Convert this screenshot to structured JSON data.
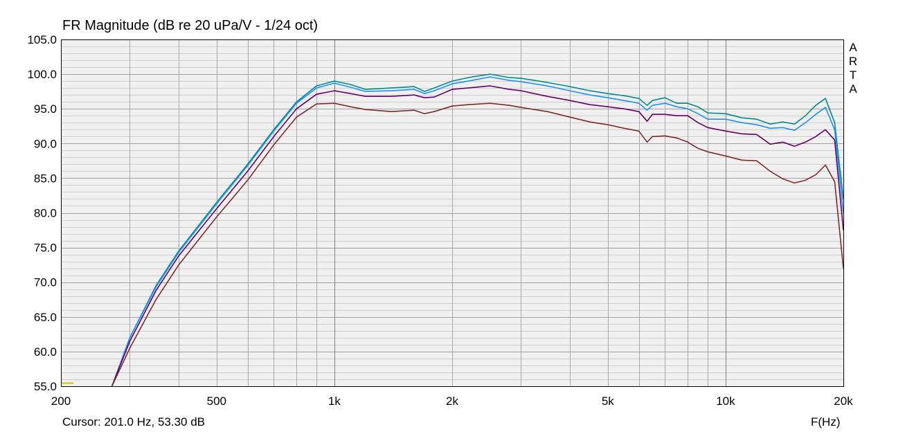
{
  "chart_data": {
    "type": "line",
    "title": "FR Magnitude (dB re 20 uPa/V - 1/24 oct)",
    "xlabel": "F(Hz)",
    "ylabel": "",
    "x_scale": "log",
    "xlim": [
      200,
      20000
    ],
    "ylim": [
      55,
      105
    ],
    "grid": true,
    "y_ticks": [
      {
        "value": 105,
        "label": "105.0"
      },
      {
        "value": 100,
        "label": "100.0"
      },
      {
        "value": 95,
        "label": "95.0"
      },
      {
        "value": 90,
        "label": "90.0"
      },
      {
        "value": 85,
        "label": "85.0"
      },
      {
        "value": 80,
        "label": "80.0"
      },
      {
        "value": 75,
        "label": "75.0"
      },
      {
        "value": 70,
        "label": "70.0"
      },
      {
        "value": 65,
        "label": "65.0"
      },
      {
        "value": 60,
        "label": "60.0"
      },
      {
        "value": 55,
        "label": "55.0"
      }
    ],
    "x_ticks": [
      {
        "value": 200,
        "label": "200"
      },
      {
        "value": 500,
        "label": "500"
      },
      {
        "value": 1000,
        "label": "1k"
      },
      {
        "value": 2000,
        "label": "2k"
      },
      {
        "value": 5000,
        "label": "5k"
      },
      {
        "value": 10000,
        "label": "10k"
      },
      {
        "value": 20000,
        "label": "20k"
      }
    ],
    "series": [
      {
        "color": "#008b8b",
        "x": [
          270,
          300,
          350,
          400,
          500,
          600,
          700,
          800,
          900,
          1000,
          1100,
          1200,
          1400,
          1600,
          1700,
          1800,
          2000,
          2200,
          2500,
          2800,
          3000,
          3500,
          4000,
          4500,
          5000,
          5500,
          6000,
          6300,
          6500,
          7000,
          7500,
          8000,
          8500,
          9000,
          10000,
          11000,
          12000,
          13000,
          14000,
          15000,
          16000,
          17000,
          18000,
          19000,
          20000
        ],
        "y": [
          55,
          62,
          69.5,
          74.5,
          81.5,
          87,
          92,
          96,
          98.3,
          99,
          98.5,
          97.8,
          98,
          98.2,
          97.5,
          98,
          99,
          99.5,
          100,
          99.5,
          99.4,
          98.8,
          98.2,
          97.6,
          97.2,
          96.9,
          96.5,
          95.5,
          96.2,
          96.6,
          95.8,
          95.8,
          95.3,
          94.4,
          94.3,
          93.7,
          93.5,
          92.8,
          93.1,
          92.8,
          94,
          95.5,
          96.5,
          93,
          82
        ]
      },
      {
        "color": "#1e90ff",
        "x": [
          270,
          300,
          350,
          400,
          500,
          600,
          700,
          800,
          900,
          1000,
          1100,
          1200,
          1400,
          1600,
          1700,
          1800,
          2000,
          2200,
          2500,
          2800,
          3000,
          3500,
          4000,
          4500,
          5000,
          5500,
          6000,
          6300,
          6500,
          7000,
          7500,
          8000,
          8500,
          9000,
          10000,
          11000,
          12000,
          13000,
          14000,
          15000,
          16000,
          17000,
          18000,
          19000,
          20000
        ],
        "y": [
          55,
          62,
          69.3,
          74.3,
          81.3,
          86.8,
          91.8,
          95.8,
          98,
          98.7,
          98.1,
          97.5,
          97.6,
          97.8,
          97.2,
          97.6,
          98.6,
          99,
          99.6,
          99.1,
          98.9,
          98.3,
          97.6,
          97,
          96.6,
          96.2,
          95.8,
          94.8,
          95.5,
          95.8,
          95.3,
          95,
          94.3,
          93.5,
          93.5,
          93,
          92.7,
          92.2,
          92.3,
          91.9,
          93,
          94.2,
          95.2,
          92,
          80
        ]
      },
      {
        "color": "#660066",
        "x": [
          270,
          300,
          350,
          400,
          500,
          600,
          700,
          800,
          900,
          1000,
          1100,
          1200,
          1400,
          1600,
          1700,
          1800,
          2000,
          2200,
          2500,
          2800,
          3000,
          3500,
          4000,
          4500,
          5000,
          5500,
          6000,
          6300,
          6500,
          7000,
          7500,
          8000,
          8500,
          9000,
          10000,
          11000,
          12000,
          13000,
          14000,
          15000,
          16000,
          17000,
          18000,
          19000,
          20000
        ],
        "y": [
          55,
          61.5,
          68.8,
          73.8,
          80.6,
          86,
          91,
          95,
          97.1,
          97.6,
          97.2,
          96.8,
          96.8,
          97,
          96.6,
          96.7,
          97.8,
          98,
          98.3,
          97.8,
          97.6,
          96.8,
          96.2,
          95.6,
          95.3,
          95,
          94.6,
          93.2,
          94.2,
          94.2,
          94,
          94,
          93,
          92.3,
          91.8,
          91.4,
          91.3,
          89.9,
          90.2,
          89.6,
          90.2,
          91,
          92,
          90.5,
          77.5
        ]
      },
      {
        "color": "#7f2a2a",
        "x": [
          270,
          300,
          350,
          400,
          500,
          600,
          700,
          800,
          900,
          1000,
          1100,
          1200,
          1400,
          1600,
          1700,
          1800,
          2000,
          2200,
          2500,
          2800,
          3000,
          3500,
          4000,
          4500,
          5000,
          5500,
          6000,
          6300,
          6500,
          7000,
          7500,
          8000,
          8500,
          9000,
          10000,
          11000,
          12000,
          13000,
          14000,
          15000,
          16000,
          17000,
          18000,
          19000,
          20000
        ],
        "y": [
          55,
          60.5,
          67.5,
          72.5,
          79.4,
          84.7,
          89.8,
          93.8,
          95.7,
          95.8,
          95.3,
          94.9,
          94.6,
          94.8,
          94.3,
          94.6,
          95.4,
          95.6,
          95.8,
          95.5,
          95.2,
          94.6,
          93.8,
          93.1,
          92.7,
          92.2,
          91.8,
          90.2,
          91,
          91.1,
          90.8,
          90.2,
          89.3,
          88.8,
          88.2,
          87.6,
          87.5,
          86,
          84.9,
          84.3,
          84.7,
          85.5,
          86.9,
          84.5,
          72
        ]
      }
    ]
  },
  "overlay": {
    "cursor_text": "Cursor: 201.0 Hz, 53.30 dB",
    "arta_letters": [
      "A",
      "R",
      "T",
      "A"
    ]
  }
}
